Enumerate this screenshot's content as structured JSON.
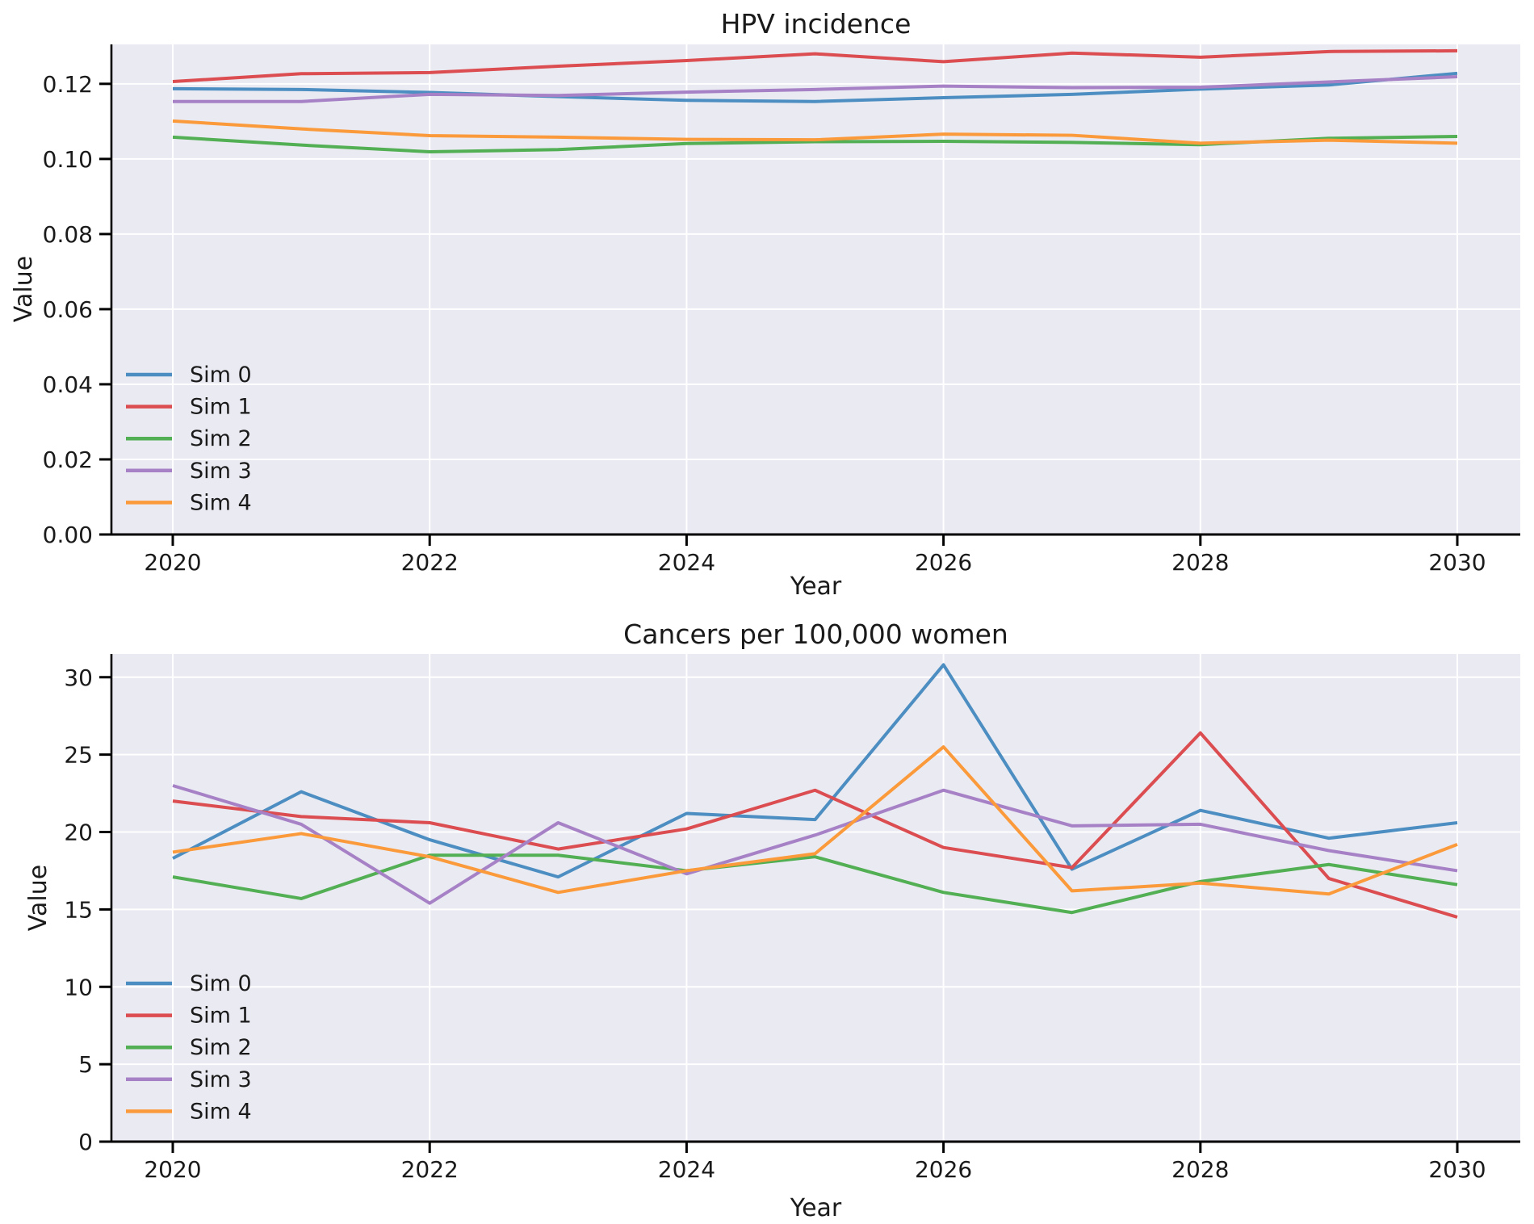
{
  "styles": {
    "figure_background": "#ffffff",
    "plot_background": "#EAEAF2",
    "grid_color": "#FFFFFF",
    "spine_color": "#000000",
    "text_color": "#1a1a1a"
  },
  "chart_data": [
    {
      "type": "line",
      "title": "HPV incidence",
      "xlabel": "Year",
      "ylabel": "Value",
      "x": [
        2020,
        2021,
        2022,
        2023,
        2024,
        2025,
        2026,
        2027,
        2028,
        2029,
        2030
      ],
      "xticks": [
        2020,
        2022,
        2024,
        2026,
        2028,
        2030
      ],
      "xtick_labels": [
        "2020",
        "2022",
        "2024",
        "2026",
        "2028",
        "2030"
      ],
      "yticks": [
        0,
        0.02,
        0.04,
        0.06,
        0.08,
        0.1,
        0.12
      ],
      "ytick_labels": [
        "0.00",
        "0.02",
        "0.04",
        "0.06",
        "0.08",
        "0.10",
        "0.12"
      ],
      "ylim": [
        0,
        0.1305
      ],
      "xlim": [
        2019.52,
        2030.49
      ],
      "grid": true,
      "legend_position": "center-left",
      "legend_frame": false,
      "series": [
        {
          "name": "Sim 0",
          "color": "#4C8EC1",
          "values": [
            0.1187,
            0.1185,
            0.1177,
            0.1166,
            0.1156,
            0.1153,
            0.1163,
            0.1172,
            0.1186,
            0.1197,
            0.1228
          ]
        },
        {
          "name": "Sim 1",
          "color": "#DB4D50",
          "values": [
            0.1206,
            0.1227,
            0.123,
            0.1247,
            0.1262,
            0.128,
            0.1259,
            0.1282,
            0.1271,
            0.1286,
            0.1288
          ]
        },
        {
          "name": "Sim 2",
          "color": "#52AF53",
          "values": [
            0.1058,
            0.1037,
            0.1019,
            0.1025,
            0.1041,
            0.1046,
            0.1047,
            0.1044,
            0.1038,
            0.1055,
            0.106
          ]
        },
        {
          "name": "Sim 3",
          "color": "#A681C6",
          "values": [
            0.1153,
            0.1153,
            0.1172,
            0.1169,
            0.1178,
            0.1185,
            0.1194,
            0.119,
            0.1191,
            0.1205,
            0.1219
          ]
        },
        {
          "name": "Sim 4",
          "color": "#FB9A3B",
          "values": [
            0.1101,
            0.108,
            0.1062,
            0.1058,
            0.1052,
            0.1051,
            0.1066,
            0.1063,
            0.1042,
            0.105,
            0.1042
          ]
        }
      ]
    },
    {
      "type": "line",
      "title": "Cancers per 100,000 women",
      "xlabel": "Year",
      "ylabel": "Value",
      "x": [
        2020,
        2021,
        2022,
        2023,
        2024,
        2025,
        2026,
        2027,
        2028,
        2029,
        2030
      ],
      "xticks": [
        2020,
        2022,
        2024,
        2026,
        2028,
        2030
      ],
      "xtick_labels": [
        "2020",
        "2022",
        "2024",
        "2026",
        "2028",
        "2030"
      ],
      "yticks": [
        0,
        5,
        10,
        15,
        20,
        25,
        30
      ],
      "ytick_labels": [
        "0",
        "5",
        "10",
        "15",
        "20",
        "25",
        "30"
      ],
      "ylim": [
        0,
        31.5
      ],
      "xlim": [
        2019.52,
        2030.49
      ],
      "grid": true,
      "legend_position": "lower-left",
      "legend_frame": false,
      "series": [
        {
          "name": "Sim 0",
          "color": "#4C8EC1",
          "values": [
            18.3,
            22.6,
            19.5,
            17.1,
            21.2,
            20.8,
            30.8,
            17.6,
            21.4,
            19.6,
            20.6
          ]
        },
        {
          "name": "Sim 1",
          "color": "#DB4D50",
          "values": [
            22.0,
            21.0,
            20.6,
            18.9,
            20.2,
            22.7,
            19.0,
            17.7,
            26.4,
            17.0,
            14.5
          ]
        },
        {
          "name": "Sim 2",
          "color": "#52AF53",
          "values": [
            17.1,
            15.7,
            18.5,
            18.5,
            17.5,
            18.4,
            16.1,
            14.8,
            16.8,
            17.9,
            16.6
          ]
        },
        {
          "name": "Sim 3",
          "color": "#A681C6",
          "values": [
            23.0,
            20.5,
            15.4,
            20.6,
            17.3,
            19.8,
            22.7,
            20.4,
            20.5,
            18.8,
            17.5
          ]
        },
        {
          "name": "Sim 4",
          "color": "#FB9A3B",
          "values": [
            18.7,
            19.9,
            18.4,
            16.1,
            17.5,
            18.6,
            25.5,
            16.2,
            16.7,
            16.0,
            19.2
          ]
        }
      ]
    }
  ]
}
